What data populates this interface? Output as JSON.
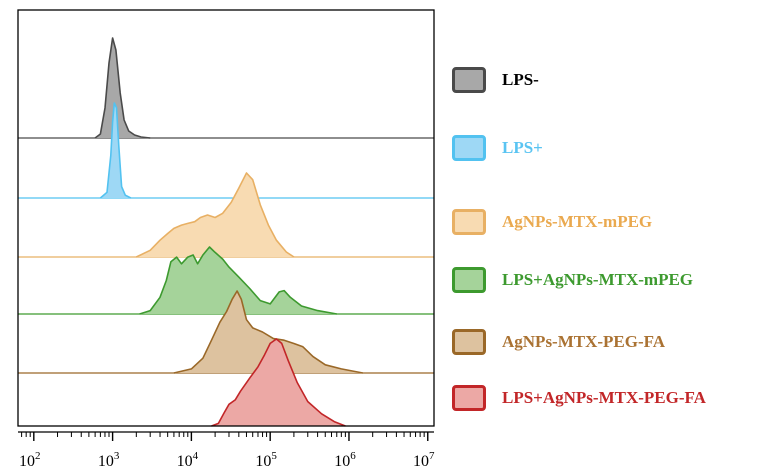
{
  "chart_data": {
    "type": "area",
    "title": "",
    "xlabel": "",
    "ylabel": "",
    "x_scale": "log",
    "xlim": [
      63,
      12000000
    ],
    "x_ticks": [
      {
        "base": "10",
        "exp": "2",
        "value": 100
      },
      {
        "base": "10",
        "exp": "3",
        "value": 1000
      },
      {
        "base": "10",
        "exp": "4",
        "value": 10000
      },
      {
        "base": "10",
        "exp": "5",
        "value": 100000
      },
      {
        "base": "10",
        "exp": "6",
        "value": 1000000
      },
      {
        "base": "10",
        "exp": "7",
        "value": 10000000
      }
    ],
    "legend_position": "right",
    "grid": false,
    "series": [
      {
        "name": "LPS-",
        "fill": "#a8a8a8",
        "stroke": "#4a4a4a",
        "label_color": "#000000",
        "points": [
          [
            600,
            0
          ],
          [
            700,
            0.04
          ],
          [
            800,
            0.3
          ],
          [
            900,
            0.75
          ],
          [
            1000,
            1.0
          ],
          [
            1100,
            0.88
          ],
          [
            1250,
            0.45
          ],
          [
            1400,
            0.18
          ],
          [
            1600,
            0.07
          ],
          [
            1900,
            0.03
          ],
          [
            2300,
            0.01
          ],
          [
            3000,
            0
          ]
        ]
      },
      {
        "name": "LPS+",
        "fill": "#9ed8f5",
        "stroke": "#52c2f0",
        "label_color": "#5ac4f2",
        "points": [
          [
            700,
            0
          ],
          [
            850,
            0.06
          ],
          [
            950,
            0.45
          ],
          [
            1000,
            0.8
          ],
          [
            1050,
            1.0
          ],
          [
            1120,
            0.95
          ],
          [
            1200,
            0.55
          ],
          [
            1300,
            0.12
          ],
          [
            1450,
            0.03
          ],
          [
            1700,
            0
          ]
        ]
      },
      {
        "name": "AgNPs-MTX-mPEG",
        "fill": "#f8dbb2",
        "stroke": "#e8b064",
        "label_color": "#eaa94f",
        "points": [
          [
            2000,
            0
          ],
          [
            3000,
            0.08
          ],
          [
            4000,
            0.2
          ],
          [
            5000,
            0.28
          ],
          [
            6000,
            0.34
          ],
          [
            7500,
            0.38
          ],
          [
            9000,
            0.4
          ],
          [
            11000,
            0.42
          ],
          [
            13000,
            0.47
          ],
          [
            16000,
            0.5
          ],
          [
            20000,
            0.47
          ],
          [
            25000,
            0.52
          ],
          [
            32000,
            0.65
          ],
          [
            40000,
            0.82
          ],
          [
            50000,
            1.0
          ],
          [
            60000,
            0.92
          ],
          [
            75000,
            0.62
          ],
          [
            95000,
            0.38
          ],
          [
            120000,
            0.2
          ],
          [
            160000,
            0.06
          ],
          [
            200000,
            0
          ]
        ]
      },
      {
        "name": "LPS+AgNPs-MTX-mPEG",
        "fill": "#a5d39a",
        "stroke": "#3d9a2f",
        "label_color": "#3d9a2f",
        "points": [
          [
            2200,
            0
          ],
          [
            3000,
            0.05
          ],
          [
            4000,
            0.25
          ],
          [
            4800,
            0.5
          ],
          [
            5500,
            0.78
          ],
          [
            6500,
            0.85
          ],
          [
            7500,
            0.75
          ],
          [
            9000,
            0.85
          ],
          [
            10500,
            0.88
          ],
          [
            12000,
            0.75
          ],
          [
            14000,
            0.88
          ],
          [
            17000,
            1.0
          ],
          [
            20000,
            0.92
          ],
          [
            25000,
            0.82
          ],
          [
            30000,
            0.7
          ],
          [
            40000,
            0.55
          ],
          [
            55000,
            0.38
          ],
          [
            75000,
            0.2
          ],
          [
            100000,
            0.15
          ],
          [
            130000,
            0.33
          ],
          [
            150000,
            0.35
          ],
          [
            180000,
            0.25
          ],
          [
            250000,
            0.12
          ],
          [
            400000,
            0.05
          ],
          [
            700000,
            0
          ]
        ]
      },
      {
        "name": "AgNPs-MTX-PEG-FA",
        "fill": "#ddc29f",
        "stroke": "#9a6828",
        "label_color": "#aa7232",
        "points": [
          [
            6000,
            0
          ],
          [
            10000,
            0.05
          ],
          [
            14000,
            0.18
          ],
          [
            18000,
            0.4
          ],
          [
            23000,
            0.62
          ],
          [
            28000,
            0.75
          ],
          [
            33000,
            0.9
          ],
          [
            38000,
            1.0
          ],
          [
            43000,
            0.9
          ],
          [
            50000,
            0.65
          ],
          [
            60000,
            0.55
          ],
          [
            80000,
            0.5
          ],
          [
            110000,
            0.42
          ],
          [
            150000,
            0.4
          ],
          [
            200000,
            0.36
          ],
          [
            260000,
            0.32
          ],
          [
            350000,
            0.2
          ],
          [
            500000,
            0.1
          ],
          [
            800000,
            0.05
          ],
          [
            1500000,
            0
          ]
        ]
      },
      {
        "name": "LPS+AgNPs-MTX-PEG-FA",
        "fill": "#eca8a5",
        "stroke": "#c22628",
        "label_color": "#c22628",
        "points": [
          [
            18000,
            0
          ],
          [
            22000,
            0.03
          ],
          [
            26000,
            0.15
          ],
          [
            30000,
            0.25
          ],
          [
            36000,
            0.3
          ],
          [
            42000,
            0.4
          ],
          [
            55000,
            0.55
          ],
          [
            70000,
            0.68
          ],
          [
            85000,
            0.82
          ],
          [
            100000,
            0.95
          ],
          [
            120000,
            1.0
          ],
          [
            140000,
            0.95
          ],
          [
            170000,
            0.75
          ],
          [
            220000,
            0.5
          ],
          [
            300000,
            0.28
          ],
          [
            450000,
            0.14
          ],
          [
            650000,
            0.05
          ],
          [
            900000,
            0
          ]
        ]
      }
    ]
  }
}
